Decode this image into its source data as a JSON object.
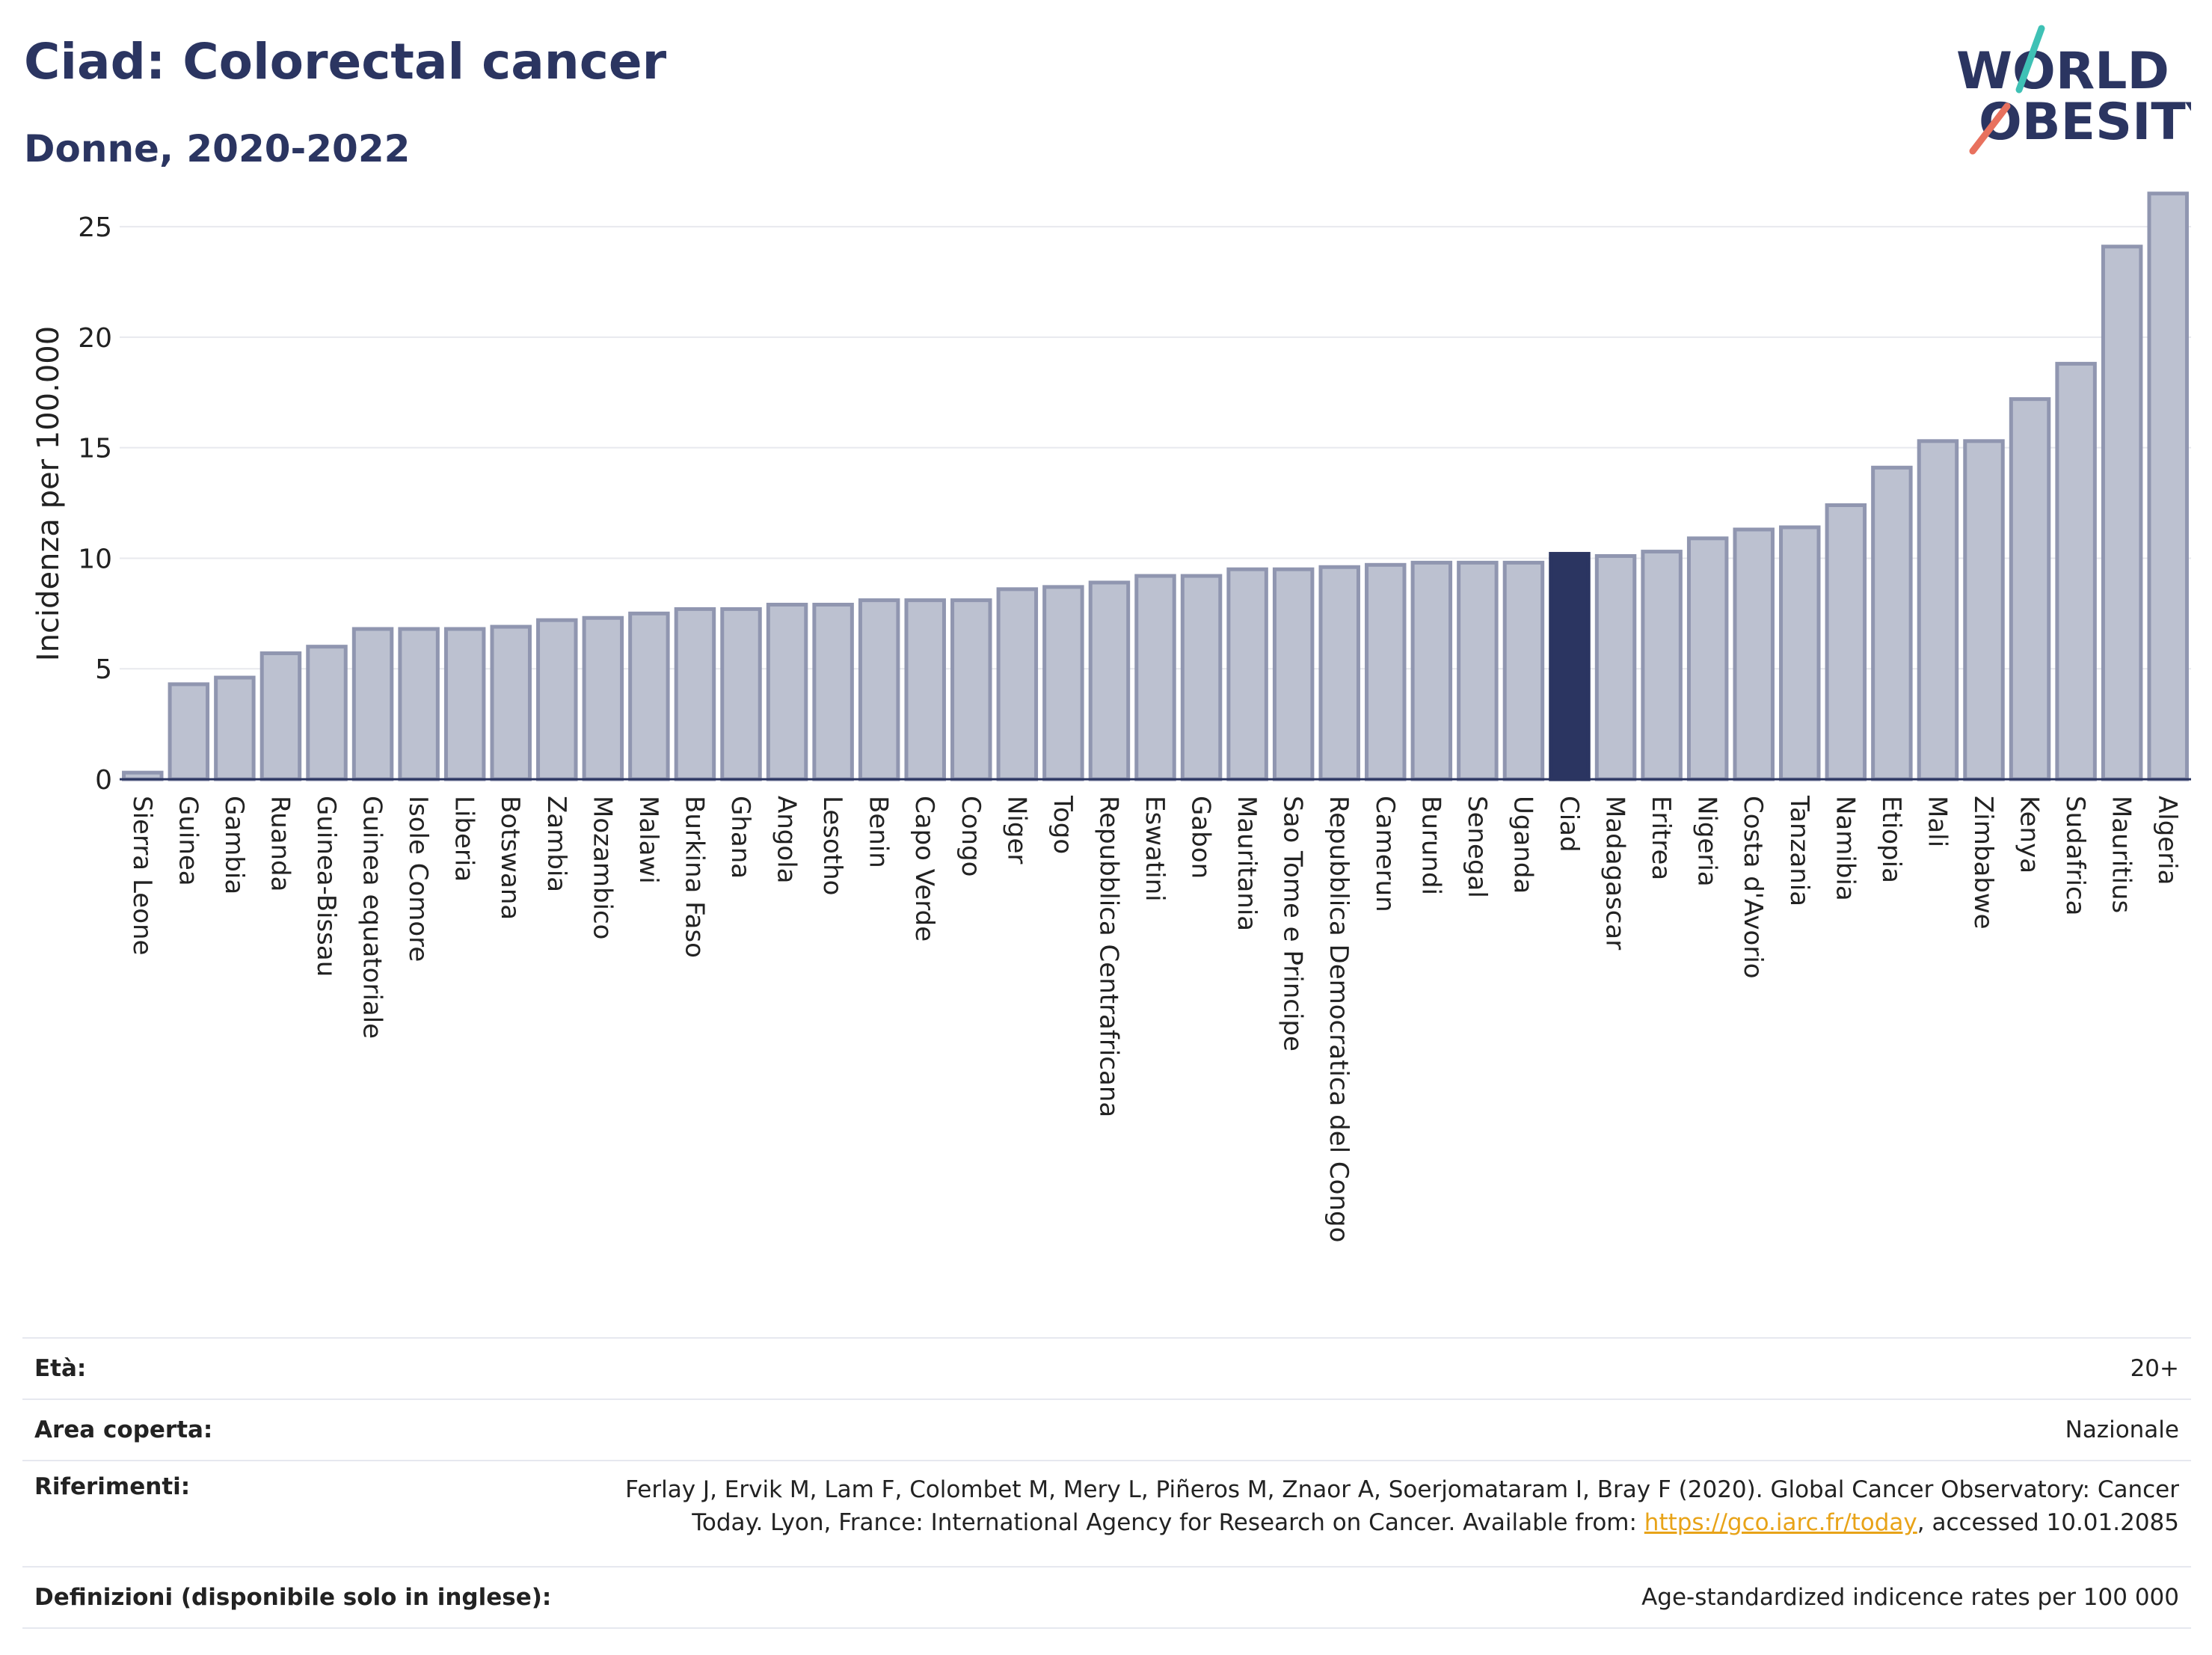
{
  "header": {
    "title": "Ciad: Colorectal cancer",
    "subtitle": "Donne, 2020-2022"
  },
  "logo": {
    "line1": "WORLD",
    "line2": "OBESITY",
    "name": "world-obesity-logo"
  },
  "chart_data": {
    "type": "bar",
    "title": "Ciad: Colorectal cancer",
    "subtitle": "Donne, 2020-2022",
    "ylabel": "Incidenza per 100.000",
    "xlabel": "",
    "ylim": [
      0,
      27
    ],
    "yticks": [
      0,
      5,
      10,
      15,
      20,
      25
    ],
    "grid": true,
    "highlight": "Ciad",
    "colors": {
      "bar": "#bcc1d0",
      "bar_edge": "#9096b0",
      "highlight": "#2b3561",
      "grid": "#e8e9ee"
    },
    "categories": [
      "Sierra Leone",
      "Guinea",
      "Gambia",
      "Ruanda",
      "Guinea-Bissau",
      "Guinea equatoriale",
      "Isole Comore",
      "Liberia",
      "Botswana",
      "Zambia",
      "Mozambico",
      "Malawi",
      "Burkina Faso",
      "Ghana",
      "Angola",
      "Lesotho",
      "Benin",
      "Capo Verde",
      "Congo",
      "Niger",
      "Togo",
      "Repubblica Centrafricana",
      "Eswatini",
      "Gabon",
      "Mauritania",
      "Sao Tome e Principe",
      "Repubblica Democratica del Congo",
      "Camerun",
      "Burundi",
      "Senegal",
      "Uganda",
      "Ciad",
      "Madagascar",
      "Eritrea",
      "Nigeria",
      "Costa d'Avorio",
      "Tanzania",
      "Namibia",
      "Etiopia",
      "Mali",
      "Zimbabwe",
      "Kenya",
      "Sudafrica",
      "Mauritius",
      "Algeria"
    ],
    "values": [
      0.3,
      4.3,
      4.6,
      5.7,
      6.0,
      6.8,
      6.8,
      6.8,
      6.9,
      7.2,
      7.3,
      7.5,
      7.7,
      7.7,
      7.9,
      7.9,
      8.1,
      8.1,
      8.1,
      8.6,
      8.7,
      8.9,
      9.2,
      9.2,
      9.5,
      9.5,
      9.6,
      9.7,
      9.8,
      9.8,
      9.8,
      10.2,
      10.1,
      10.3,
      10.9,
      11.3,
      11.4,
      12.4,
      14.1,
      15.3,
      15.3,
      17.2,
      18.8,
      24.1,
      26.5
    ]
  },
  "info": {
    "age_label": "Età:",
    "age_value": "20+",
    "area_label": "Area coperta:",
    "area_value": "Nazionale",
    "ref_label": "Riferimenti:",
    "ref_line1": "Ferlay J, Ervik M, Lam F, Colombet M, Mery L, Piñeros M, Znaor A, Soerjomataram I, Bray F (2020). Global Cancer Observatory: Cancer",
    "ref_line2_pre": "Today. Lyon, France: International Agency for Research on Cancer. Available from: ",
    "ref_link": "https://gco.iarc.fr/today",
    "ref_line2_post": ", accessed 10.01.2085",
    "def_label": "Definizioni (disponibile solo in inglese):",
    "def_value": "Age-standardized indicence rates per 100 000"
  }
}
